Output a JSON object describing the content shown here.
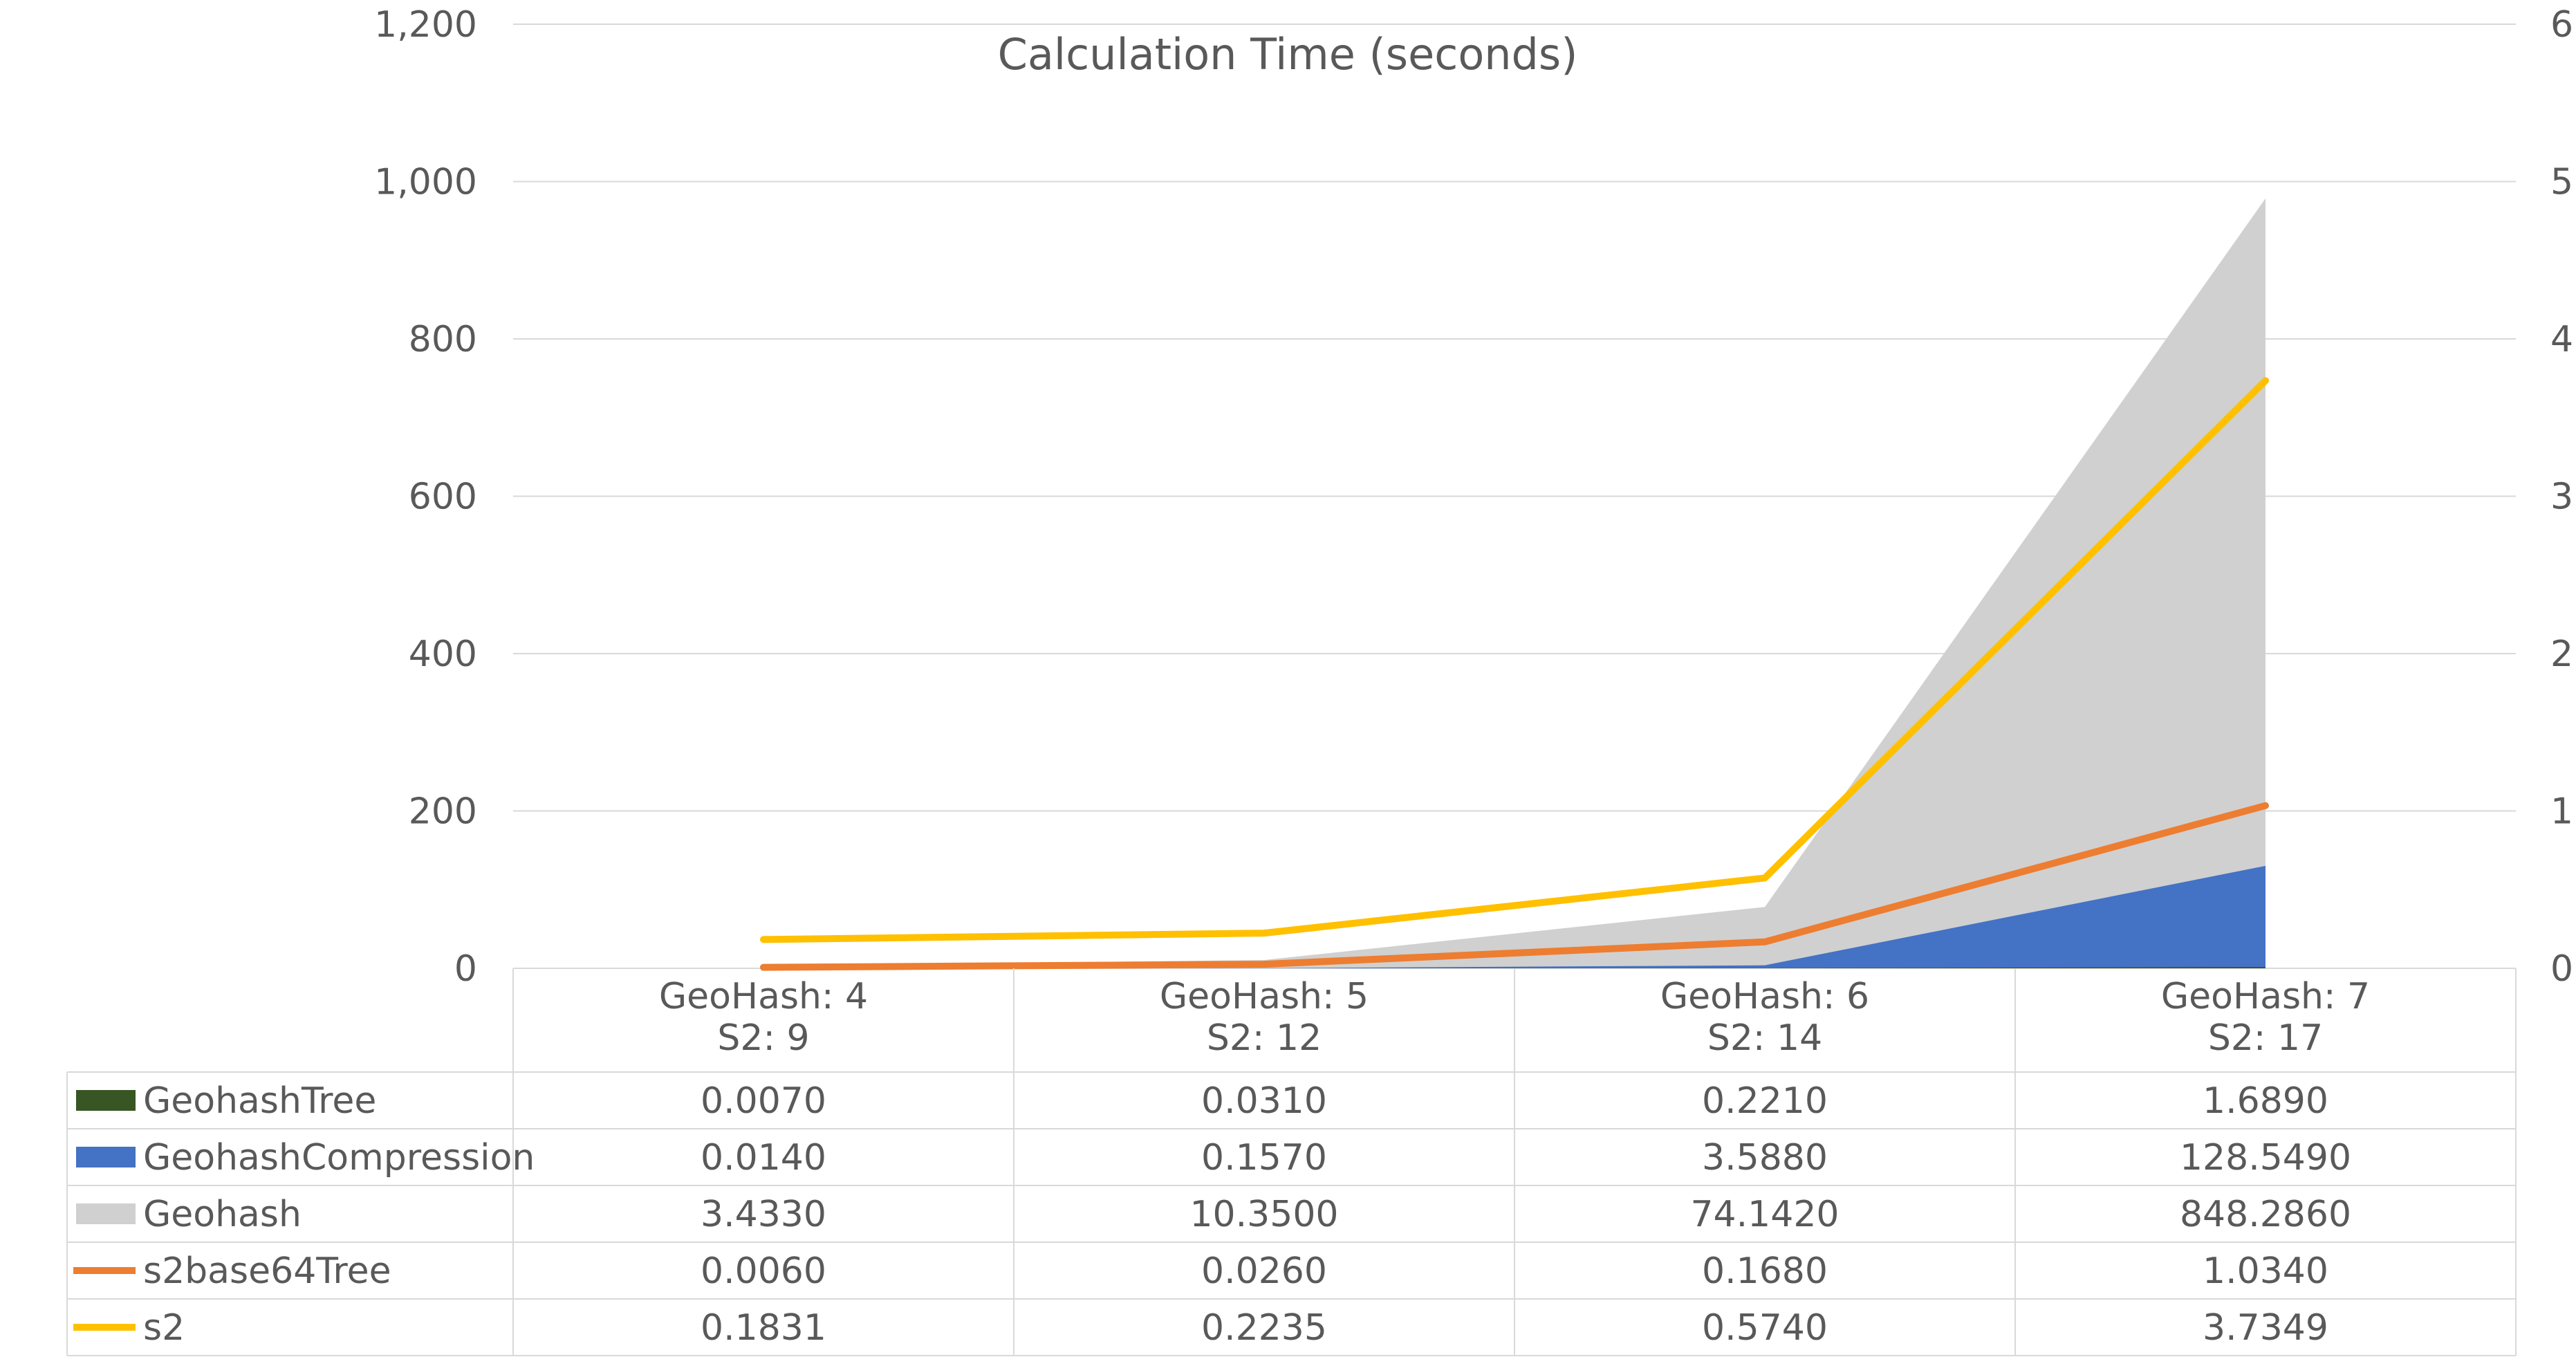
{
  "chart_data": {
    "type": "area",
    "title": "Calculation Time (seconds)",
    "categories": [
      [
        "GeoHash: 4",
        "S2: 9"
      ],
      [
        "GeoHash: 5",
        "S2: 12"
      ],
      [
        "GeoHash: 6",
        "S2: 14"
      ],
      [
        "GeoHash: 7",
        "S2: 17"
      ]
    ],
    "y_left": {
      "min": 0,
      "max": 1200,
      "ticks": [
        "0",
        "200",
        "400",
        "600",
        "800",
        "1,000",
        "1,200"
      ]
    },
    "y_right": {
      "min": 0,
      "max": 6,
      "ticks": [
        "0",
        "1",
        "2",
        "3",
        "4",
        "5",
        "6"
      ]
    },
    "grid": true,
    "legend": "data-table",
    "series": [
      {
        "name": "GeohashTree",
        "kind": "stacked-area",
        "axis": "left",
        "color": "#375623",
        "values": [
          0.007,
          0.031,
          0.221,
          1.689
        ],
        "labels": [
          "0.0070",
          "0.0310",
          "0.2210",
          "1.6890"
        ]
      },
      {
        "name": "GeohashCompression",
        "kind": "stacked-area",
        "axis": "left",
        "color": "#4472C4",
        "values": [
          0.014,
          0.157,
          3.588,
          128.549
        ],
        "labels": [
          "0.0140",
          "0.1570",
          "3.5880",
          "128.5490"
        ]
      },
      {
        "name": "Geohash",
        "kind": "stacked-area",
        "axis": "left",
        "color": "#D0D0D0",
        "values": [
          3.433,
          10.35,
          74.142,
          848.286
        ],
        "labels": [
          "3.4330",
          "10.3500",
          "74.1420",
          "848.2860"
        ]
      },
      {
        "name": "s2base64Tree",
        "kind": "line",
        "axis": "right",
        "color": "#ED7D31",
        "values": [
          0.006,
          0.026,
          0.168,
          1.034
        ],
        "labels": [
          "0.0060",
          "0.0260",
          "0.1680",
          "1.0340"
        ]
      },
      {
        "name": "s2",
        "kind": "line",
        "axis": "right",
        "color": "#FFC000",
        "values": [
          0.1831,
          0.2235,
          0.574,
          3.7349
        ],
        "labels": [
          "0.1831",
          "0.2235",
          "0.5740",
          "3.7349"
        ]
      }
    ]
  }
}
